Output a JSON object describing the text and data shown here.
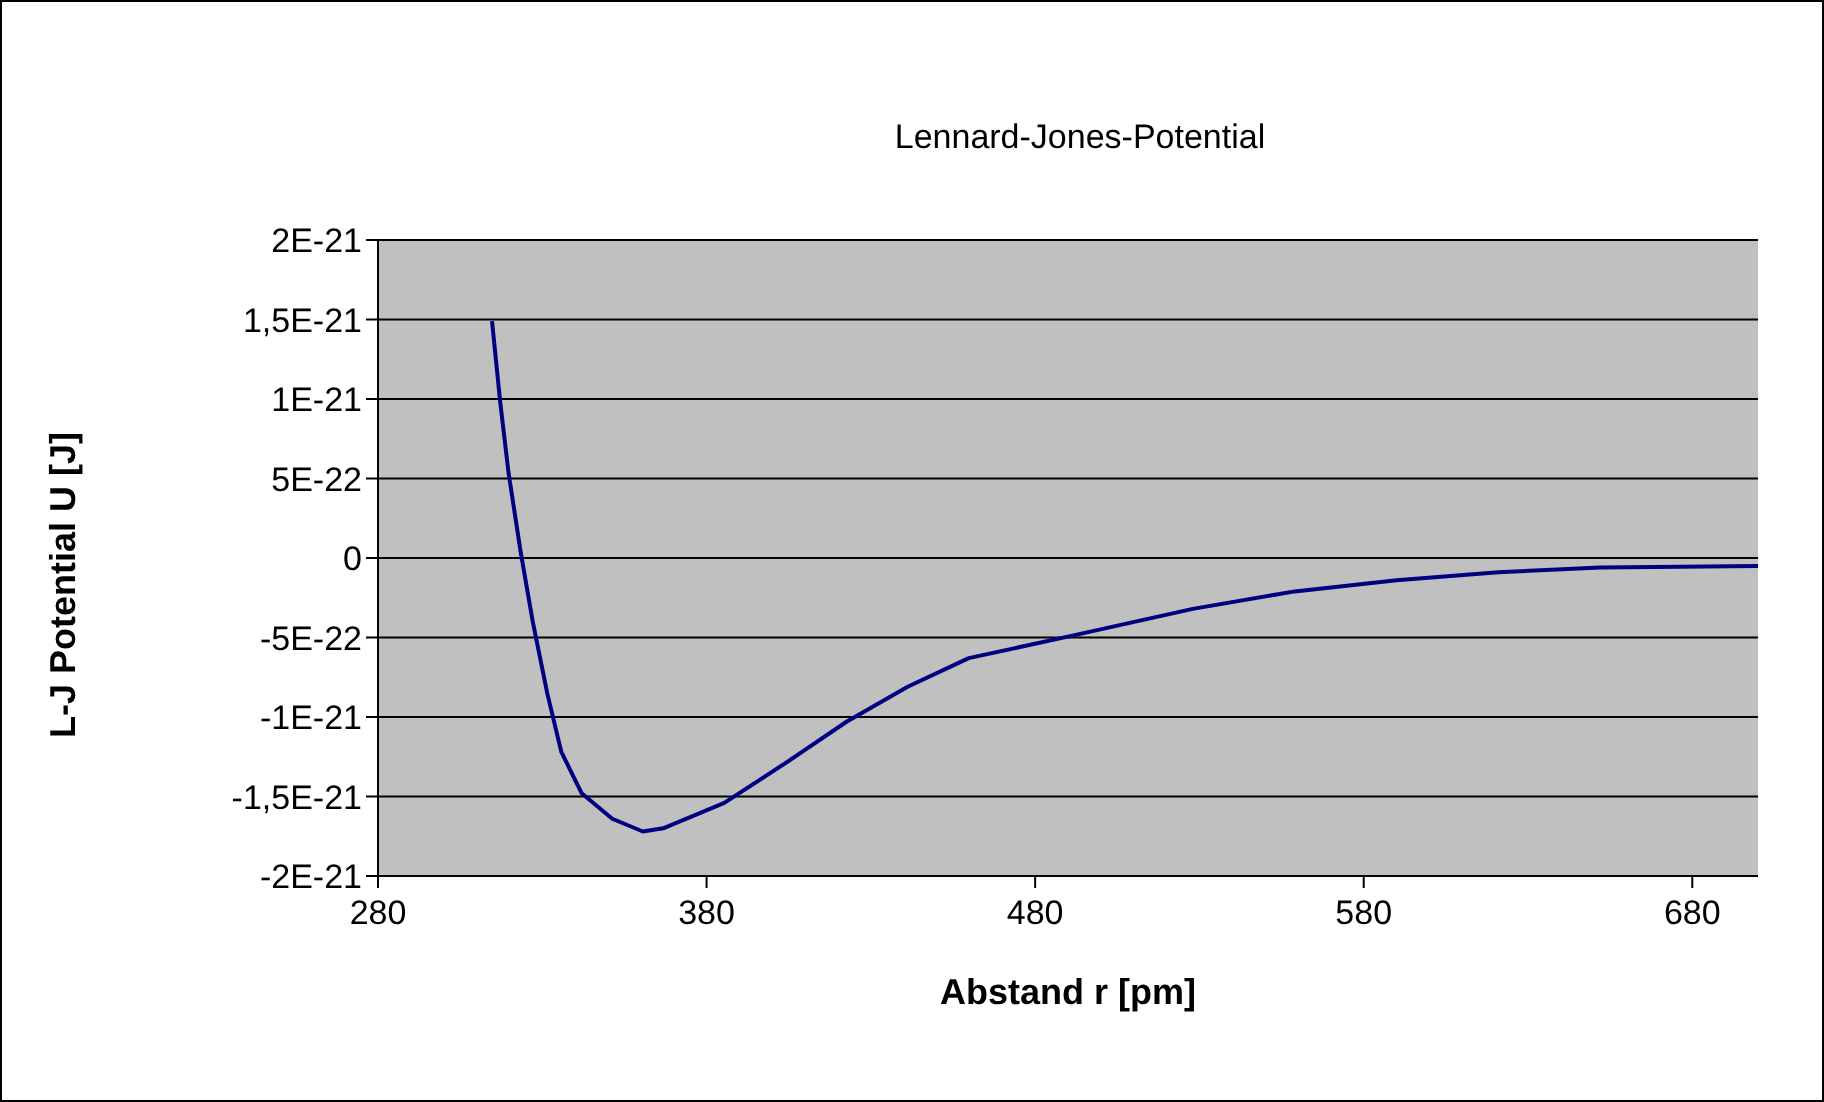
{
  "chart_data": {
    "type": "line",
    "title": "Lennard-Jones-Potential",
    "xlabel": "Abstand r [pm]",
    "ylabel": "L-J Potential U [J]",
    "x": [
      314.7,
      317.2,
      319.7,
      323.4,
      327.1,
      331.5,
      335.8,
      342,
      351.3,
      360.6,
      366.8,
      385.4,
      404,
      422.6,
      441.2,
      459.8,
      491,
      528,
      559,
      590,
      621,
      652,
      700
    ],
    "series": [
      {
        "color": "#000080",
        "values": [
          1.49e-21,
          9.8e-22,
          5.4e-22,
          4e-23,
          -4e-22,
          -8.5e-22,
          -1.22e-21,
          -1.48e-21,
          -1.64e-21,
          -1.72e-21,
          -1.7e-21,
          -1.54e-21,
          -1.29e-21,
          -1.03e-21,
          -8.1e-22,
          -6.3e-22,
          -4.9e-22,
          -3.2e-22,
          -2.1e-22,
          -1.4e-22,
          -9e-23,
          -6e-23,
          -5e-23
        ]
      }
    ],
    "xlim": [
      280,
      700
    ],
    "xticks": [
      280,
      380,
      480,
      580,
      680
    ],
    "ylim": [
      -2e-21,
      2e-21
    ],
    "yticks": [
      {
        "value": -2e-21,
        "label": "-2E-21"
      },
      {
        "value": -1.5e-21,
        "label": "-1,5E-21"
      },
      {
        "value": -1e-21,
        "label": "-1E-21"
      },
      {
        "value": -5e-22,
        "label": "-5E-22"
      },
      {
        "value": 0,
        "label": "0"
      },
      {
        "value": 5e-22,
        "label": "5E-22"
      },
      {
        "value": 1e-21,
        "label": "1E-21"
      },
      {
        "value": 1.5e-21,
        "label": "1,5E-21"
      },
      {
        "value": 2e-21,
        "label": "2E-21"
      }
    ],
    "grid": "y",
    "legend": false,
    "marker": "none",
    "line_style": "solid"
  }
}
